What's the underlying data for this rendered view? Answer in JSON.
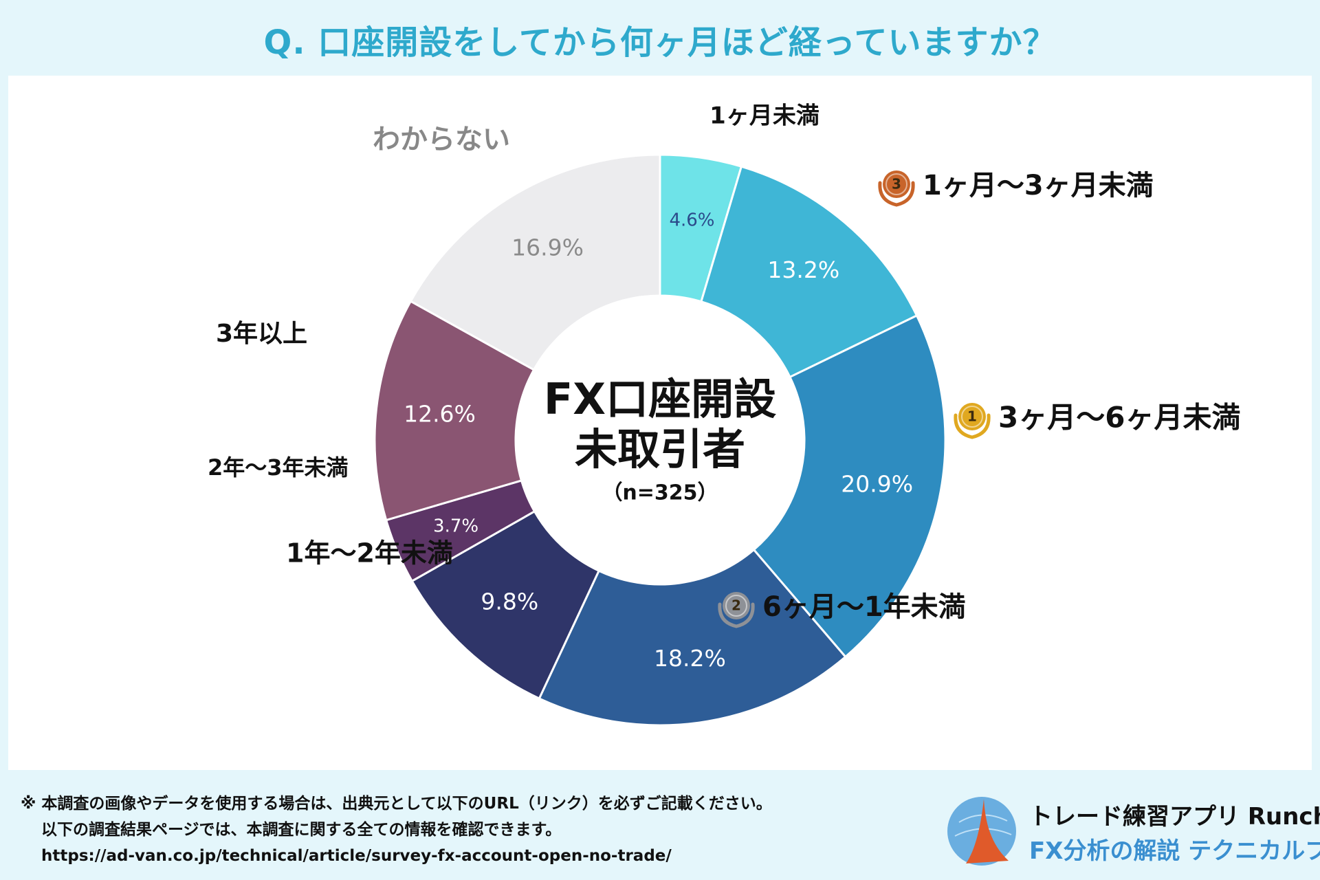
{
  "header": {
    "title": "Q. 口座開設をしてから何ヶ月ほど経っていますか？"
  },
  "chart_data": {
    "type": "pie",
    "variant": "donut",
    "title": "FX口座開設未取引者",
    "center_lines": [
      "FX口座開設",
      "未取引者"
    ],
    "sample": "（n=325）",
    "categories": [
      "1ヶ月未満",
      "1ヶ月〜3ヶ月未満",
      "3ヶ月〜6ヶ月未満",
      "6ヶ月〜1年未満",
      "1年〜2年未満",
      "2年〜3年未満",
      "3年以上",
      "わからない"
    ],
    "values": [
      4.6,
      13.2,
      20.9,
      18.2,
      9.8,
      3.7,
      12.6,
      16.9
    ],
    "value_labels": [
      "4.6%",
      "13.2%",
      "20.9%",
      "18.2%",
      "9.8%",
      "3.7%",
      "12.6%",
      "16.9%"
    ],
    "colors": [
      "#6ee3e8",
      "#3fb6d6",
      "#2e8cc0",
      "#2e5d97",
      "#2f3569",
      "#5c3566",
      "#8a5572",
      "#ececee"
    ],
    "value_label_colors": [
      "#2b4a8a",
      "#ffffff",
      "#ffffff",
      "#ffffff",
      "#ffffff",
      "#ffffff",
      "#ffffff",
      "#8a8a8a"
    ],
    "category_label_colors": [
      "#111111",
      "#111111",
      "#111111",
      "#111111",
      "#111111",
      "#111111",
      "#111111",
      "#888888"
    ],
    "rank_badges": [
      {
        "category": "3ヶ月〜6ヶ月未満",
        "rank": "1",
        "color": "#e0a820"
      },
      {
        "category": "6ヶ月〜1年未満",
        "rank": "2",
        "color": "#8e9197"
      },
      {
        "category": "1ヶ月〜3ヶ月未満",
        "rank": "3",
        "color": "#c8642a"
      }
    ]
  },
  "footer": {
    "note_line1": "※ 本調査の画像やデータを使用する場合は、出典元として以下のURL（リンク）を必ずご記載ください。",
    "note_line2": "以下の調査結果ページでは、本調査に関する全ての情報を確認できます。",
    "url": "https://ad-van.co.jp/technical/article/survey-fx-account-open-no-trade/"
  },
  "brand": {
    "line1": "トレード練習アプリ  Runcha",
    "line2": "FX分析の解説  テクニカルブック"
  }
}
